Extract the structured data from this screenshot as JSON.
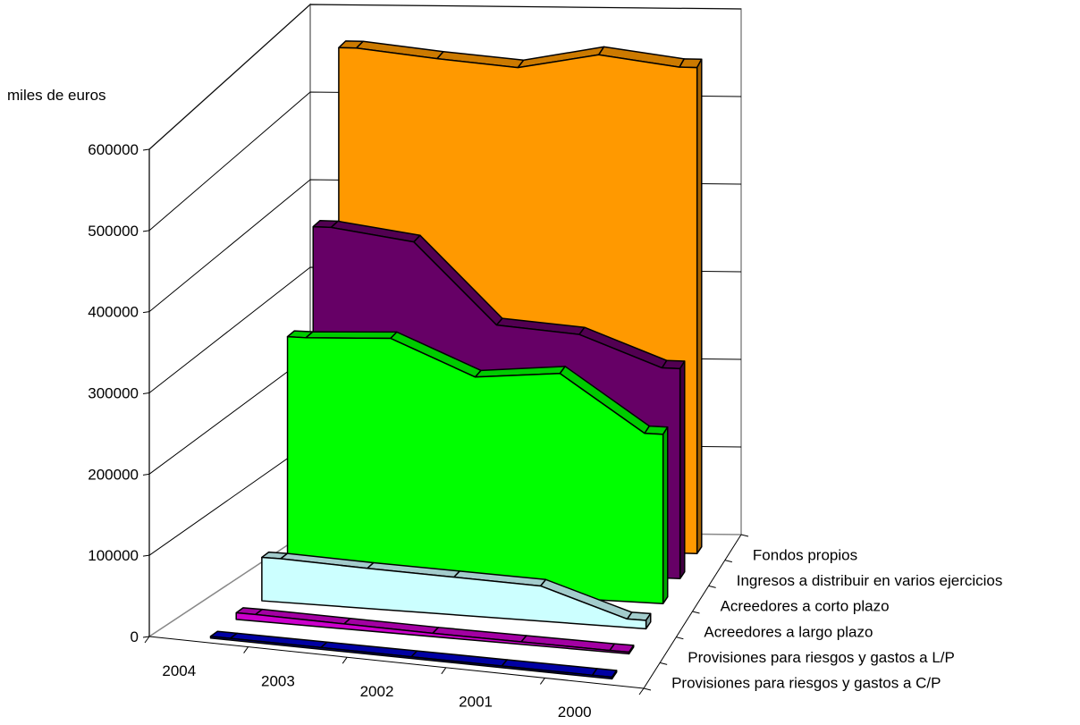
{
  "chart_data": {
    "type": "area",
    "subtype": "3d-ribbon",
    "unit_label": "miles de euros",
    "xlabel": "",
    "ylabel": "miles de euros",
    "ylim": [
      0,
      600000
    ],
    "y_ticks": [
      "0",
      "100000",
      "200000",
      "300000",
      "400000",
      "500000",
      "600000"
    ],
    "categories": [
      "2004",
      "2003",
      "2002",
      "2001",
      "2000"
    ],
    "grid": true,
    "series": [
      {
        "name": "Fondos propios",
        "color": "#FF9900",
        "values": [
          573000,
          563000,
          555000,
          572000,
          560000
        ]
      },
      {
        "name": "Ingresos a distribuir en varios ejercicios",
        "color": "#660066",
        "values": [
          393000,
          380000,
          287000,
          280000,
          245000
        ]
      },
      {
        "name": "Acreedores a corto plazo",
        "color": "#00FF00",
        "values": [
          290000,
          295000,
          255000,
          265000,
          200000
        ]
      },
      {
        "name": "Acreedores a largo plazo",
        "color": "#CCFFFF",
        "values": [
          52000,
          48000,
          45000,
          42000,
          10000
        ]
      },
      {
        "name": "Provisiones para riesgos y gastos a L/P",
        "color": "#CC00CC",
        "values": [
          8000,
          6000,
          4000,
          3000,
          2000
        ]
      },
      {
        "name": "Provisiones para riesgos y gastos a C/P",
        "color": "#0000CC",
        "values": [
          2000,
          2000,
          2000,
          2000,
          2000
        ]
      }
    ]
  }
}
